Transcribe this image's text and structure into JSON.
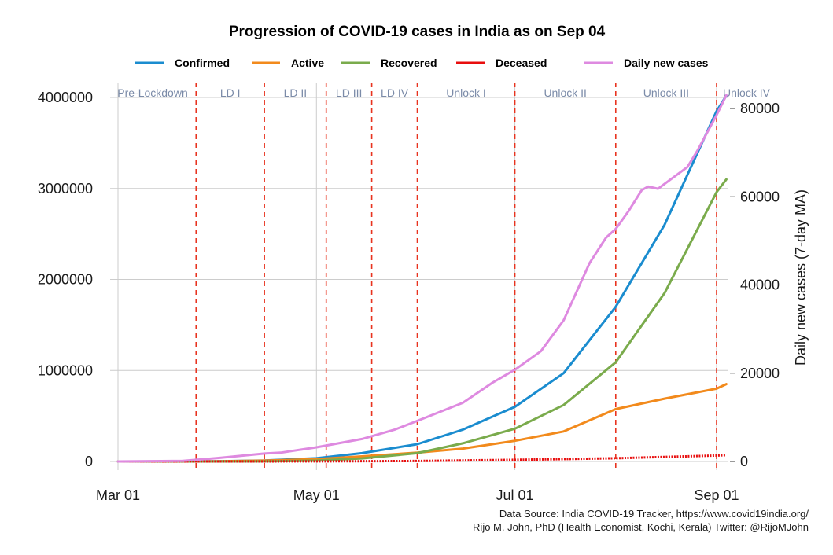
{
  "chart_data": {
    "type": "line",
    "title": "Progression of COVID-19 cases in India as on Sep 04",
    "x_tick_labels": [
      "Mar 01",
      "May 01",
      "Jul 01",
      "Sep 01"
    ],
    "x_tick_days": [
      0,
      61,
      122,
      184
    ],
    "x_range_days": [
      0,
      187
    ],
    "y_left": {
      "label": "",
      "range": [
        0,
        4200000
      ],
      "ticks": [
        0,
        1000000,
        2000000,
        3000000,
        4000000
      ],
      "tick_labels": [
        "0",
        "1000000",
        "2000000",
        "3000000",
        "4000000"
      ]
    },
    "y_right": {
      "label": "Daily new cases (7-day MA)",
      "range": [
        0,
        84000
      ],
      "ticks": [
        0,
        20000,
        40000,
        60000,
        80000
      ],
      "tick_labels": [
        "0",
        "20000",
        "40000",
        "60000",
        "80000"
      ]
    },
    "phases": [
      {
        "label": "Pre-Lockdown",
        "start_day": 0
      },
      {
        "label": "LD I",
        "start_day": 24
      },
      {
        "label": "LD II",
        "start_day": 45
      },
      {
        "label": "LD III",
        "start_day": 64
      },
      {
        "label": "LD IV",
        "start_day": 78
      },
      {
        "label": "Unlock I",
        "start_day": 92
      },
      {
        "label": "Unlock II",
        "start_day": 122
      },
      {
        "label": "Unlock III",
        "start_day": 153
      },
      {
        "label": "Unlock IV",
        "start_day": 184
      }
    ],
    "series": [
      {
        "name": "Confirmed",
        "axis": "left",
        "color": "#1a8ccf",
        "x": [
          0,
          20,
          31,
          45,
          61,
          75,
          92,
          106,
          122,
          137,
          153,
          168,
          184,
          187
        ],
        "values": [
          3,
          200,
          1400,
          11000,
          35000,
          92000,
          190000,
          350000,
          600000,
          970000,
          1700000,
          2600000,
          3850000,
          4020000
        ]
      },
      {
        "name": "Active",
        "axis": "left",
        "color": "#f28a1c",
        "x": [
          0,
          20,
          31,
          45,
          61,
          75,
          92,
          106,
          122,
          137,
          153,
          168,
          184,
          187
        ],
        "values": [
          3,
          180,
          1300,
          9500,
          26000,
          56000,
          97000,
          142000,
          227000,
          330000,
          575000,
          690000,
          800000,
          850000
        ]
      },
      {
        "name": "Recovered",
        "axis": "left",
        "color": "#7aab4c",
        "x": [
          0,
          20,
          31,
          45,
          61,
          75,
          92,
          106,
          122,
          137,
          153,
          168,
          184,
          187
        ],
        "values": [
          0,
          20,
          100,
          1200,
          9500,
          34000,
          92000,
          200000,
          360000,
          620000,
          1090000,
          1850000,
          2960000,
          3100000
        ]
      },
      {
        "name": "Deceased",
        "axis": "left",
        "color": "#e80e0e",
        "x": [
          0,
          31,
          61,
          92,
          122,
          153,
          184,
          187
        ],
        "values": [
          0,
          40,
          1150,
          5600,
          17800,
          35000,
          66000,
          69000
        ]
      },
      {
        "name": "Daily new cases",
        "axis": "right",
        "color": "#de8ae0",
        "x": [
          0,
          20,
          31,
          45,
          50,
          61,
          75,
          85,
          92,
          106,
          115,
          122,
          130,
          137,
          145,
          150,
          153,
          157,
          161,
          163,
          166,
          170,
          175,
          178,
          184,
          187
        ],
        "values": [
          0,
          150,
          800,
          1800,
          2000,
          3200,
          5100,
          7200,
          9200,
          13300,
          17800,
          20800,
          25000,
          32000,
          45000,
          50700,
          52700,
          56800,
          61500,
          62300,
          61800,
          64000,
          66700,
          70300,
          78500,
          83000
        ]
      }
    ],
    "legend": [
      "Confirmed",
      "Active",
      "Recovered",
      "Deceased",
      "Daily new cases"
    ],
    "caption": [
      "Data Source: India COVID-19 Tracker, https://www.covid19india.org/",
      "Rijo M. John, PhD (Health Economist, Kochi, Kerala) Twitter: @RijoMJohn"
    ]
  }
}
